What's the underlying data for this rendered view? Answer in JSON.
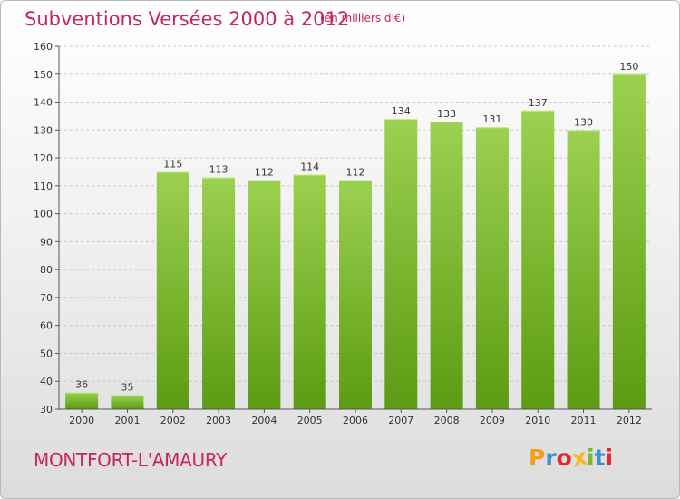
{
  "header": {
    "title": "Subventions Versées 2000 à 2012",
    "unit": "(en milliers d'€)"
  },
  "footer": {
    "commune": "MONTFORT-L'AMAURY",
    "logo_letters": [
      "P",
      "r",
      "o",
      "x",
      "i",
      "t",
      "i"
    ]
  },
  "colors": {
    "title": "#c8245f",
    "bar_top": "#9bd150",
    "bar_bottom": "#5c9b13",
    "grid": "#c8c8c8",
    "logo": [
      "#f39c1d",
      "#3d8fd6",
      "#e8262a",
      "#f7b81e",
      "#7cb82e",
      "#3d8fd6",
      "#e8262a"
    ]
  },
  "chart_data": {
    "type": "bar",
    "title": "Subventions Versées 2000 à 2012",
    "subtitle": "(en milliers d'€)",
    "xlabel": "",
    "ylabel": "",
    "categories": [
      "2000",
      "2001",
      "2002",
      "2003",
      "2004",
      "2005",
      "2006",
      "2007",
      "2008",
      "2009",
      "2010",
      "2011",
      "2012"
    ],
    "values": [
      36,
      35,
      115,
      113,
      112,
      114,
      112,
      134,
      133,
      131,
      137,
      130,
      150
    ],
    "ylim": [
      30,
      160
    ],
    "yticks": [
      30,
      40,
      50,
      60,
      70,
      80,
      90,
      100,
      110,
      120,
      130,
      140,
      150,
      160
    ],
    "grid": true,
    "legend": "none"
  }
}
